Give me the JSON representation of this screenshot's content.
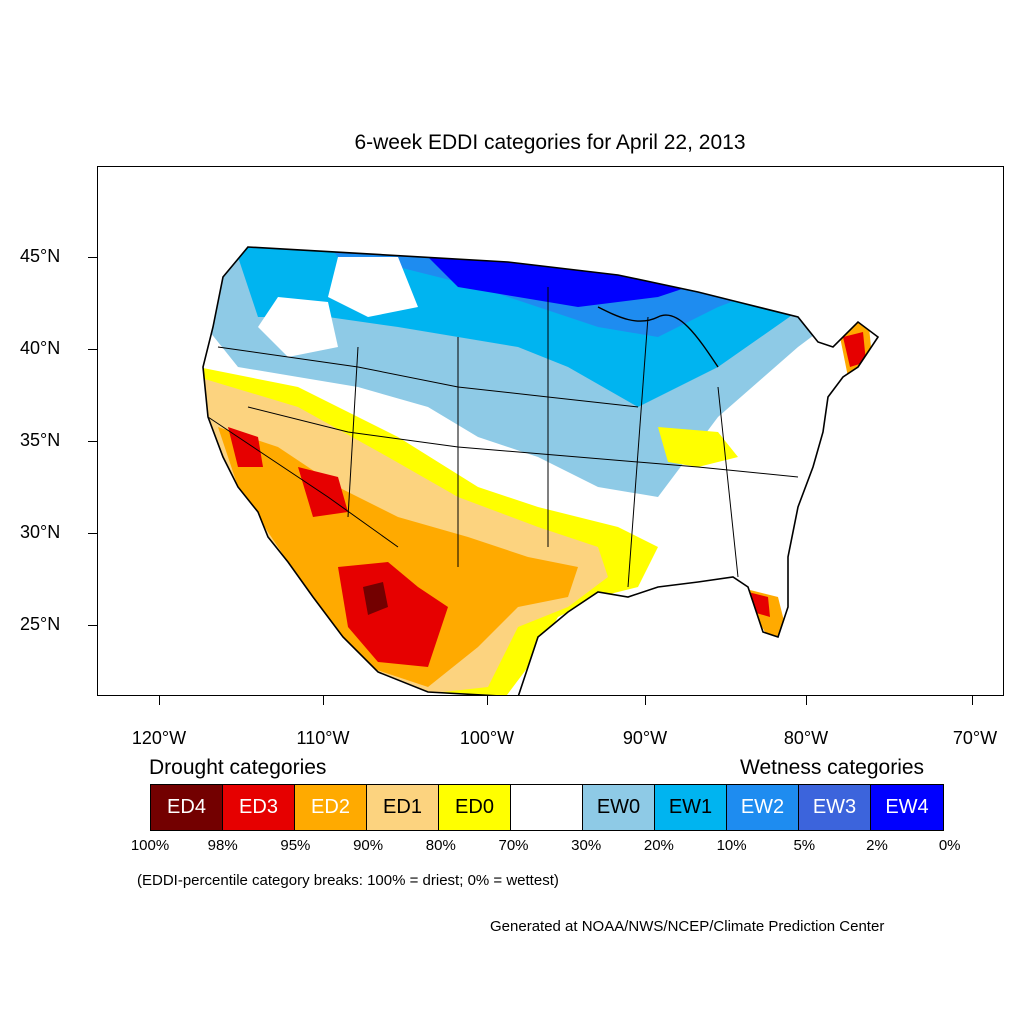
{
  "title": "6-week EDDI categories for April 22, 2013",
  "lat_labels": [
    "45°N",
    "40°N",
    "35°N",
    "30°N",
    "25°N"
  ],
  "lon_labels": [
    "120°W",
    "110°W",
    "100°W",
    "90°W",
    "80°W",
    "70°W"
  ],
  "legend": {
    "drought_heading": "Drought categories",
    "wetness_heading": "Wetness categories",
    "categories": [
      {
        "label": "ED4",
        "color": "#730000",
        "text_color": "#ffffff"
      },
      {
        "label": "ED3",
        "color": "#e60000",
        "text_color": "#ffffff"
      },
      {
        "label": "ED2",
        "color": "#ffaa00",
        "text_color": "#ffffff"
      },
      {
        "label": "ED1",
        "color": "#fcd37f",
        "text_color": "#000000"
      },
      {
        "label": "ED0",
        "color": "#ffff00",
        "text_color": "#000000"
      },
      {
        "label": "",
        "color": "#ffffff",
        "text_color": "#000000"
      },
      {
        "label": "EW0",
        "color": "#8ecae6",
        "text_color": "#000000"
      },
      {
        "label": "EW1",
        "color": "#00b4f0",
        "text_color": "#000000"
      },
      {
        "label": "EW2",
        "color": "#1e8cf0",
        "text_color": "#ffffff"
      },
      {
        "label": "EW3",
        "color": "#3c64dc",
        "text_color": "#ffffff"
      },
      {
        "label": "EW4",
        "color": "#0000ff",
        "text_color": "#ffffff"
      }
    ],
    "percent_labels": [
      "100%",
      "98%",
      "95%",
      "90%",
      "80%",
      "70%",
      "30%",
      "20%",
      "10%",
      "5%",
      "2%",
      "0%"
    ]
  },
  "note": "(EDDI-percentile category breaks: 100% = driest; 0% = wettest)",
  "credit": "Generated at NOAA/NWS/NCEP/Climate Prediction Center"
}
